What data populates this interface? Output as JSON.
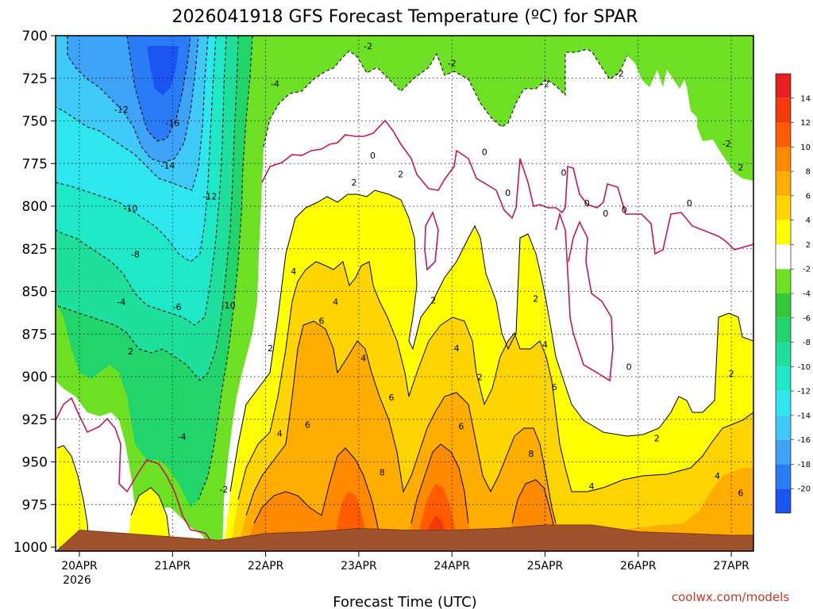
{
  "chart_data": {
    "type": "heatmap",
    "title": "2026041918 GFS Forecast Temperature (ºC) for SPAR",
    "xlabel": "Forecast Time (UTC)",
    "ylabel": "",
    "credit": "coolwx.com/models",
    "y_axis": {
      "units": "hPa",
      "range": [
        700,
        1000
      ],
      "ticks": [
        "700",
        "725",
        "750",
        "775",
        "800",
        "825",
        "850",
        "875",
        "900",
        "925",
        "950",
        "975",
        "1000"
      ]
    },
    "x_axis": {
      "ticks": [
        {
          "label": "20APR",
          "sub": "2026"
        },
        {
          "label": "21APR",
          "sub": ""
        },
        {
          "label": "22APR",
          "sub": ""
        },
        {
          "label": "23APR",
          "sub": ""
        },
        {
          "label": "24APR",
          "sub": ""
        },
        {
          "label": "25APR",
          "sub": ""
        },
        {
          "label": "26APR",
          "sub": ""
        },
        {
          "label": "27APR",
          "sub": ""
        }
      ]
    },
    "colorbar": {
      "levels": [
        "-20",
        "-18",
        "-16",
        "-14",
        "-12",
        "-10",
        "-8",
        "-6",
        "-4",
        "-2",
        "2",
        "4",
        "6",
        "8",
        "10",
        "12",
        "14"
      ],
      "colors": [
        "#1a55f2",
        "#2a7cf6",
        "#3ea3f7",
        "#3fc9f6",
        "#2ee6ee",
        "#1ee8c6",
        "#1edf9c",
        "#22d46c",
        "#34c83c",
        "#6de024",
        "#ffffff",
        "#ffff00",
        "#ffd400",
        "#ffae00",
        "#ff8a00",
        "#ff5c00",
        "#f23a0a",
        "#e82020"
      ]
    },
    "series": [
      {
        "name": "surface_pressure_hPa",
        "time_day": [
          0,
          0.5,
          1,
          1.5,
          2,
          2.5,
          3,
          3.5,
          4,
          4.5,
          5,
          5.5,
          6,
          6.5,
          7,
          7.3
        ],
        "values": [
          990,
          992,
          994,
          996,
          992,
          991,
          989,
          990,
          990,
          989,
          987,
          987,
          991,
          992,
          993,
          993
        ]
      },
      {
        "name": "contour_labels",
        "items": [
          {
            "t": 3.1,
            "p": 708,
            "label": "-2"
          },
          {
            "t": 4.0,
            "p": 718,
            "label": "-2"
          },
          {
            "t": 5.8,
            "p": 724,
            "label": "-2"
          },
          {
            "t": 5.0,
            "p": 730,
            "label": "-2"
          },
          {
            "t": 2.1,
            "p": 730,
            "label": "-4"
          },
          {
            "t": 0.45,
            "p": 745,
            "label": "-12"
          },
          {
            "t": 1.0,
            "p": 753,
            "label": "-16"
          },
          {
            "t": 0.95,
            "p": 778,
            "label": "-14"
          },
          {
            "t": 1.4,
            "p": 796,
            "label": "-12"
          },
          {
            "t": 0.55,
            "p": 803,
            "label": "-10"
          },
          {
            "t": 0.6,
            "p": 830,
            "label": "-8"
          },
          {
            "t": 0.45,
            "p": 858,
            "label": "-4"
          },
          {
            "t": 1.05,
            "p": 861,
            "label": "-6"
          },
          {
            "t": 1.6,
            "p": 860,
            "label": "-10"
          },
          {
            "t": 0.55,
            "p": 887,
            "label": "2"
          },
          {
            "t": 1.1,
            "p": 937,
            "label": "-4"
          },
          {
            "t": 1.55,
            "p": 968,
            "label": "-2"
          },
          {
            "t": 2.05,
            "p": 885,
            "label": "2"
          },
          {
            "t": 3.15,
            "p": 772,
            "label": "0"
          },
          {
            "t": 2.95,
            "p": 788,
            "label": "2"
          },
          {
            "t": 3.45,
            "p": 783,
            "label": "2"
          },
          {
            "t": 4.6,
            "p": 794,
            "label": "0"
          },
          {
            "t": 5.2,
            "p": 782,
            "label": "0"
          },
          {
            "t": 5.45,
            "p": 800,
            "label": "0"
          },
          {
            "t": 5.65,
            "p": 806,
            "label": "0"
          },
          {
            "t": 5.85,
            "p": 804,
            "label": "0"
          },
          {
            "t": 6.55,
            "p": 800,
            "label": "0"
          },
          {
            "t": 6.95,
            "p": 765,
            "label": "-2"
          },
          {
            "t": 7.1,
            "p": 779,
            "label": "2"
          },
          {
            "t": 4.35,
            "p": 770,
            "label": "0"
          },
          {
            "t": 2.3,
            "p": 840,
            "label": "4"
          },
          {
            "t": 2.75,
            "p": 858,
            "label": "4"
          },
          {
            "t": 2.6,
            "p": 869,
            "label": "6"
          },
          {
            "t": 3.05,
            "p": 891,
            "label": "4"
          },
          {
            "t": 3.35,
            "p": 914,
            "label": "6"
          },
          {
            "t": 2.45,
            "p": 930,
            "label": "6"
          },
          {
            "t": 2.15,
            "p": 935,
            "label": "4"
          },
          {
            "t": 3.25,
            "p": 958,
            "label": "8"
          },
          {
            "t": 3.8,
            "p": 857,
            "label": "2"
          },
          {
            "t": 4.3,
            "p": 902,
            "label": "2"
          },
          {
            "t": 4.05,
            "p": 885,
            "label": "4"
          },
          {
            "t": 4.1,
            "p": 931,
            "label": "6"
          },
          {
            "t": 4.9,
            "p": 856,
            "label": "2"
          },
          {
            "t": 5.0,
            "p": 883,
            "label": "4"
          },
          {
            "t": 5.1,
            "p": 908,
            "label": "6"
          },
          {
            "t": 4.85,
            "p": 947,
            "label": "8"
          },
          {
            "t": 5.5,
            "p": 966,
            "label": "4"
          },
          {
            "t": 5.9,
            "p": 896,
            "label": "0"
          },
          {
            "t": 6.2,
            "p": 938,
            "label": "2"
          },
          {
            "t": 7.0,
            "p": 900,
            "label": "2"
          },
          {
            "t": 6.85,
            "p": 960,
            "label": "4"
          },
          {
            "t": 7.1,
            "p": 970,
            "label": "6"
          }
        ]
      }
    ]
  }
}
